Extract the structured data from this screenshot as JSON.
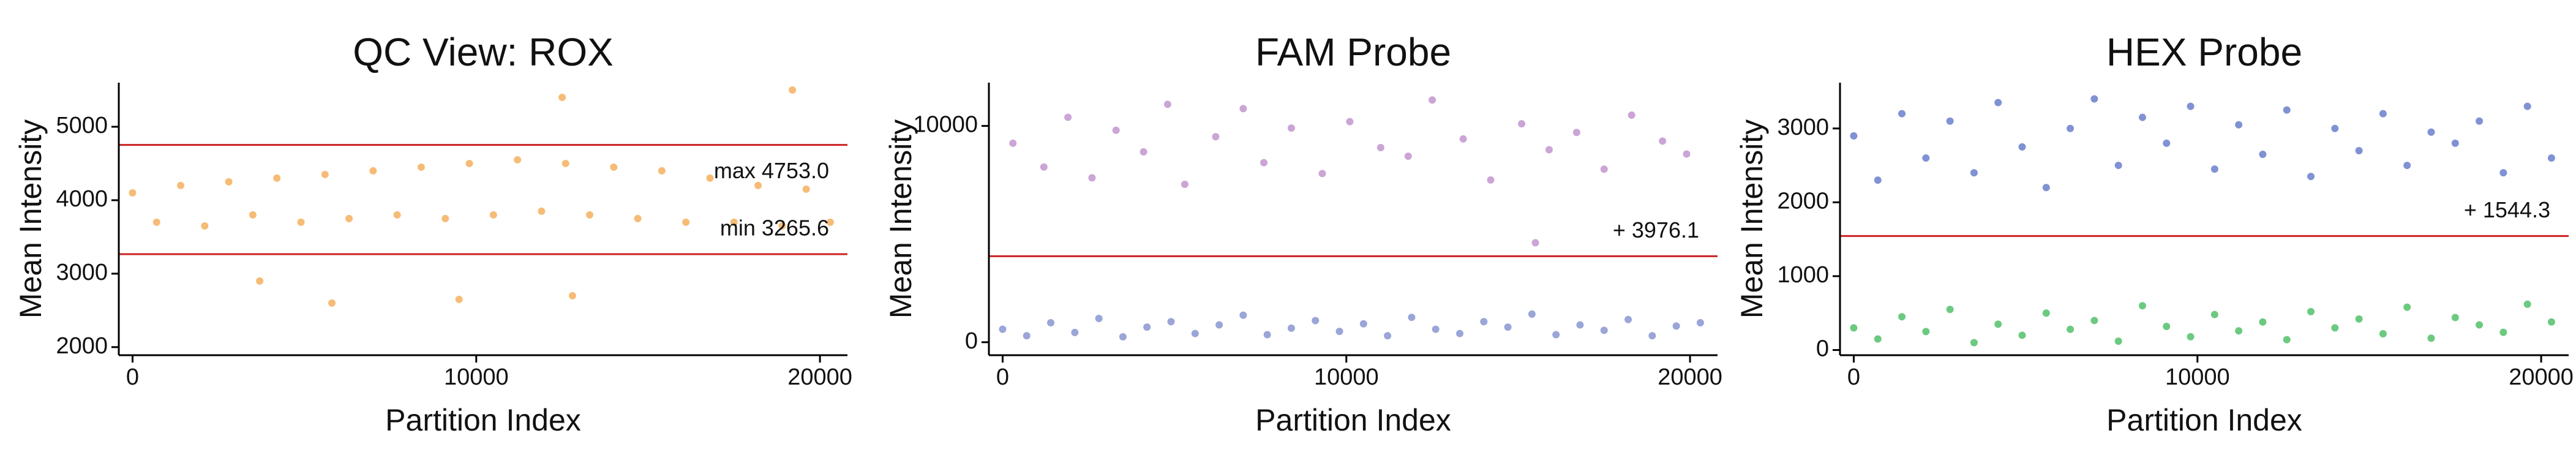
{
  "chart_data": [
    {
      "type": "scatter",
      "title": "QC View: ROX",
      "xlabel": "Partition Index",
      "ylabel": "Mean Intensity",
      "xlim": [
        -400,
        20800
      ],
      "ylim": [
        1890,
        5600
      ],
      "xticks": [
        0,
        10000,
        20000
      ],
      "yticks": [
        2000,
        3000,
        4000,
        5000
      ],
      "series": [
        {
          "color": "#f2a03d",
          "x": [
            0,
            700,
            1400,
            2100,
            2800,
            3500,
            4200,
            4900,
            5600,
            6300,
            7000,
            7700,
            8400,
            9100,
            9800,
            10500,
            11200,
            11900,
            12600,
            13300,
            14000,
            14700,
            15400,
            16100,
            16800,
            17500,
            18200,
            18900,
            19600,
            20300,
            3700,
            5800,
            12500,
            19200,
            9500,
            12800
          ],
          "values": [
            4100,
            3700,
            4200,
            3650,
            4250,
            3800,
            4300,
            3700,
            4350,
            3750,
            4400,
            3800,
            4450,
            3750,
            4500,
            3800,
            4550,
            3850,
            4500,
            3800,
            4450,
            3750,
            4400,
            3700,
            4300,
            3700,
            4200,
            3650,
            4150,
            3700,
            2900,
            2600,
            5400,
            5500,
            2650,
            2700
          ]
        }
      ],
      "thresholds": [
        {
          "value": 4753.0,
          "label": "max 4753.0",
          "color": "#cc2222"
        },
        {
          "value": 3265.6,
          "label": "min 3265.6",
          "color": "#cc2222"
        }
      ]
    },
    {
      "type": "scatter",
      "title": "FAM Probe",
      "xlabel": "Partition Index",
      "ylabel": "Mean Intensity",
      "xlim": [
        -400,
        20800
      ],
      "ylim": [
        -600,
        12000
      ],
      "xticks": [
        0,
        10000,
        20000
      ],
      "yticks": [
        0,
        10000
      ],
      "series": [
        {
          "color": "#b57fc4",
          "x": [
            300,
            1200,
            1900,
            2600,
            3300,
            4100,
            4800,
            5300,
            6200,
            7000,
            7600,
            8400,
            9300,
            10100,
            11000,
            11800,
            12500,
            13400,
            14200,
            15100,
            15900,
            16700,
            17500,
            18300,
            19200,
            19900,
            15500
          ],
          "values": [
            9200,
            8100,
            10400,
            7600,
            9800,
            8800,
            11000,
            7300,
            9500,
            10800,
            8300,
            9900,
            7800,
            10200,
            9000,
            8600,
            11200,
            9400,
            7500,
            10100,
            8900,
            9700,
            8000,
            10500,
            9300,
            8700,
            4600
          ]
        },
        {
          "color": "#6f7fc7",
          "x": [
            0,
            700,
            1400,
            2100,
            2800,
            3500,
            4200,
            4900,
            5600,
            6300,
            7000,
            7700,
            8400,
            9100,
            9800,
            10500,
            11200,
            11900,
            12600,
            13300,
            14000,
            14700,
            15400,
            16100,
            16800,
            17500,
            18200,
            18900,
            19600,
            20300
          ],
          "values": [
            600,
            300,
            900,
            450,
            1100,
            250,
            700,
            950,
            400,
            800,
            1250,
            350,
            650,
            1000,
            500,
            850,
            300,
            1150,
            600,
            400,
            950,
            700,
            1300,
            350,
            800,
            550,
            1050,
            300,
            750,
            900
          ]
        }
      ],
      "thresholds": [
        {
          "value": 3976.1,
          "label": "+ 3976.1",
          "color": "#cc2222"
        }
      ]
    },
    {
      "type": "scatter",
      "title": "HEX Probe",
      "xlabel": "Partition Index",
      "ylabel": "Mean Intensity",
      "xlim": [
        -400,
        20800
      ],
      "ylim": [
        -70,
        3620
      ],
      "xticks": [
        0,
        10000,
        20000
      ],
      "yticks": [
        0,
        1000,
        2000,
        3000
      ],
      "series": [
        {
          "color": "#4a64c0",
          "x": [
            0,
            700,
            1400,
            2100,
            2800,
            3500,
            4200,
            4900,
            5600,
            6300,
            7000,
            7700,
            8400,
            9100,
            9800,
            10500,
            11200,
            11900,
            12600,
            13300,
            14000,
            14700,
            15400,
            16100,
            16800,
            17500,
            18200,
            18900,
            19600,
            20300
          ],
          "values": [
            2900,
            2300,
            3200,
            2600,
            3100,
            2400,
            3350,
            2750,
            2200,
            3000,
            3400,
            2500,
            3150,
            2800,
            3300,
            2450,
            3050,
            2650,
            3250,
            2350,
            3000,
            2700,
            3200,
            2500,
            2950,
            2800,
            3100,
            2400,
            3300,
            2600
          ]
        },
        {
          "color": "#2eb34a",
          "x": [
            0,
            700,
            1400,
            2100,
            2800,
            3500,
            4200,
            4900,
            5600,
            6300,
            7000,
            7700,
            8400,
            9100,
            9800,
            10500,
            11200,
            11900,
            12600,
            13300,
            14000,
            14700,
            15400,
            16100,
            16800,
            17500,
            18200,
            18900,
            19600,
            20300
          ],
          "values": [
            300,
            150,
            450,
            250,
            550,
            100,
            350,
            200,
            500,
            280,
            400,
            120,
            600,
            320,
            180,
            480,
            260,
            380,
            140,
            520,
            300,
            420,
            220,
            580,
            160,
            440,
            340,
            240,
            620,
            380
          ]
        }
      ],
      "thresholds": [
        {
          "value": 1544.3,
          "label": "+ 1544.3",
          "color": "#cc2222"
        }
      ]
    }
  ]
}
